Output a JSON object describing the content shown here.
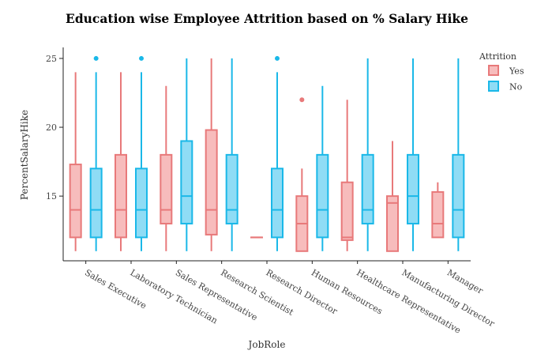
{
  "chart_data": {
    "type": "boxplot",
    "title": "Education wise Employee Attrition based on % Salary Hike",
    "xlabel": "JobRole",
    "ylabel": "PercentSalaryHike",
    "ylim": [
      10.3,
      25.8
    ],
    "yticks": [
      15,
      20,
      25
    ],
    "legend": {
      "title": "Attrition",
      "position": "top-right"
    },
    "categories": [
      "Sales Executive",
      "Laboratory Technician",
      "Sales Representative",
      "Research Scientist",
      "Research Director",
      "Human Resources",
      "Healthcare Representative",
      "Manufacturing Director",
      "Manager"
    ],
    "series": [
      {
        "name": "Yes",
        "color": "#e8797a",
        "fill": "#f7bcbc",
        "boxes": [
          {
            "min": 11,
            "q1": 12,
            "median": 14,
            "q3": 17.3,
            "max": 24,
            "outliers": []
          },
          {
            "min": 11,
            "q1": 12,
            "median": 14,
            "q3": 18,
            "max": 24,
            "outliers": []
          },
          {
            "min": 11,
            "q1": 13,
            "median": 14,
            "q3": 18,
            "max": 23,
            "outliers": []
          },
          {
            "min": 11,
            "q1": 12.2,
            "median": 14,
            "q3": 19.8,
            "max": 25,
            "outliers": []
          },
          {
            "min": 12,
            "q1": 12,
            "median": 12,
            "q3": 12,
            "max": 12,
            "outliers": []
          },
          {
            "min": 11,
            "q1": 11,
            "median": 13,
            "q3": 15,
            "max": 17,
            "outliers": [
              22
            ]
          },
          {
            "min": 11,
            "q1": 11.8,
            "median": 12,
            "q3": 16,
            "max": 22,
            "outliers": []
          },
          {
            "min": 11,
            "q1": 11,
            "median": 14.5,
            "q3": 15,
            "max": 19,
            "outliers": []
          },
          {
            "min": 12,
            "q1": 12,
            "median": 13,
            "q3": 15.3,
            "max": 16,
            "outliers": []
          }
        ]
      },
      {
        "name": "No",
        "color": "#1ab8e8",
        "fill": "#8fdcf5",
        "boxes": [
          {
            "min": 11,
            "q1": 12,
            "median": 14,
            "q3": 17,
            "max": 24,
            "outliers": [
              25
            ]
          },
          {
            "min": 11,
            "q1": 12,
            "median": 14,
            "q3": 17,
            "max": 24,
            "outliers": [
              25
            ]
          },
          {
            "min": 11,
            "q1": 13,
            "median": 15,
            "q3": 19,
            "max": 25,
            "outliers": []
          },
          {
            "min": 11,
            "q1": 13,
            "median": 14,
            "q3": 18,
            "max": 25,
            "outliers": []
          },
          {
            "min": 11,
            "q1": 12,
            "median": 14,
            "q3": 17,
            "max": 24,
            "outliers": [
              25
            ]
          },
          {
            "min": 11,
            "q1": 12,
            "median": 14,
            "q3": 18,
            "max": 23,
            "outliers": []
          },
          {
            "min": 11,
            "q1": 13,
            "median": 14,
            "q3": 18,
            "max": 25,
            "outliers": []
          },
          {
            "min": 11,
            "q1": 13,
            "median": 15,
            "q3": 18,
            "max": 25,
            "outliers": []
          },
          {
            "min": 11,
            "q1": 12,
            "median": 14,
            "q3": 18,
            "max": 25,
            "outliers": []
          }
        ]
      }
    ]
  }
}
